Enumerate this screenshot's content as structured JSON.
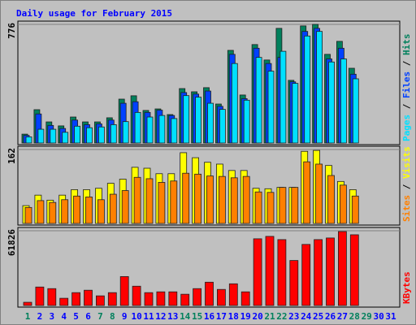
{
  "title": "Daily usage for February 2015",
  "legend_separator": " / ",
  "chart_data": [
    {
      "type": "bar",
      "categories": [
        "1",
        "2",
        "3",
        "4",
        "5",
        "6",
        "7",
        "8",
        "9",
        "10",
        "11",
        "12",
        "13",
        "14",
        "15",
        "16",
        "17",
        "18",
        "19",
        "20",
        "21",
        "22",
        "23",
        "24",
        "25",
        "26",
        "27",
        "28",
        "29",
        "30",
        "31"
      ],
      "category_colors": [
        "#00805c",
        "#0000ff",
        "#0000ff",
        "#0000ff",
        "#0000ff",
        "#0000ff",
        "#00805c",
        "#00805c",
        "#0000ff",
        "#0000ff",
        "#0000ff",
        "#0000ff",
        "#0000ff",
        "#00805c",
        "#00805c",
        "#0000ff",
        "#0000ff",
        "#0000ff",
        "#0000ff",
        "#0000ff",
        "#00805c",
        "#00805c",
        "#0000ff",
        "#0000ff",
        "#0000ff",
        "#0000ff",
        "#0000ff",
        "#00805c",
        "#00805c",
        "#0000ff",
        "#0000ff"
      ],
      "ylim": [
        0,
        776
      ],
      "yticks": [
        776
      ],
      "series": [
        {
          "name": "Hits",
          "color": "#00805c",
          "values": [
            58,
            218,
            138,
            112,
            170,
            138,
            138,
            165,
            287,
            309,
            213,
            223,
            186,
            356,
            335,
            362,
            255,
            606,
            314,
            644,
            543,
            750,
            410,
            766,
            776,
            580,
            665,
            489,
            null,
            null,
            null
          ]
        },
        {
          "name": "Files",
          "color": "#0040ff",
          "values": [
            50,
            190,
            115,
            95,
            150,
            120,
            125,
            150,
            260,
            270,
            200,
            215,
            180,
            330,
            320,
            340,
            240,
            580,
            290,
            620,
            520,
            560,
            400,
            730,
            750,
            550,
            620,
            450,
            null,
            null,
            null
          ]
        },
        {
          "name": "Pages",
          "color": "#00e0ff",
          "values": [
            40,
            90,
            90,
            70,
            110,
            100,
            105,
            120,
            140,
            200,
            170,
            180,
            160,
            310,
            300,
            260,
            220,
            520,
            280,
            560,
            470,
            600,
            390,
            700,
            730,
            530,
            550,
            420,
            null,
            null,
            null
          ]
        }
      ]
    },
    {
      "type": "bar",
      "ylim": [
        0,
        162
      ],
      "yticks": [
        162
      ],
      "series": [
        {
          "name": "Visits",
          "color": "#ffff00",
          "values": [
            39,
            62,
            51,
            62,
            74,
            74,
            77,
            88,
            97,
            123,
            121,
            109,
            109,
            155,
            144,
            134,
            130,
            116,
            116,
            77,
            76,
            79,
            79,
            158,
            160,
            127,
            92,
            74,
            null,
            null,
            null
          ]
        },
        {
          "name": "Sites",
          "color": "#ff8000",
          "values": [
            35,
            50,
            46,
            52,
            60,
            58,
            52,
            64,
            72,
            101,
            98,
            90,
            93,
            110,
            108,
            104,
            103,
            100,
            103,
            69,
            68,
            79,
            79,
            135,
            130,
            105,
            84,
            60,
            null,
            null,
            null
          ]
        }
      ]
    },
    {
      "type": "bar",
      "ylim": [
        0,
        61826
      ],
      "yticks": [
        61826
      ],
      "series": [
        {
          "name": "KBytes",
          "color": "#ff0000",
          "values": [
            2660,
            15290,
            13960,
            5980,
            10640,
            12630,
            7980,
            10640,
            23930,
            15960,
            10640,
            11300,
            11300,
            9310,
            13960,
            19280,
            13300,
            17950,
            11300,
            55180,
            57170,
            54510,
            37230,
            50520,
            54510,
            55840,
            61160,
            58500,
            null,
            null,
            null
          ]
        }
      ]
    }
  ]
}
